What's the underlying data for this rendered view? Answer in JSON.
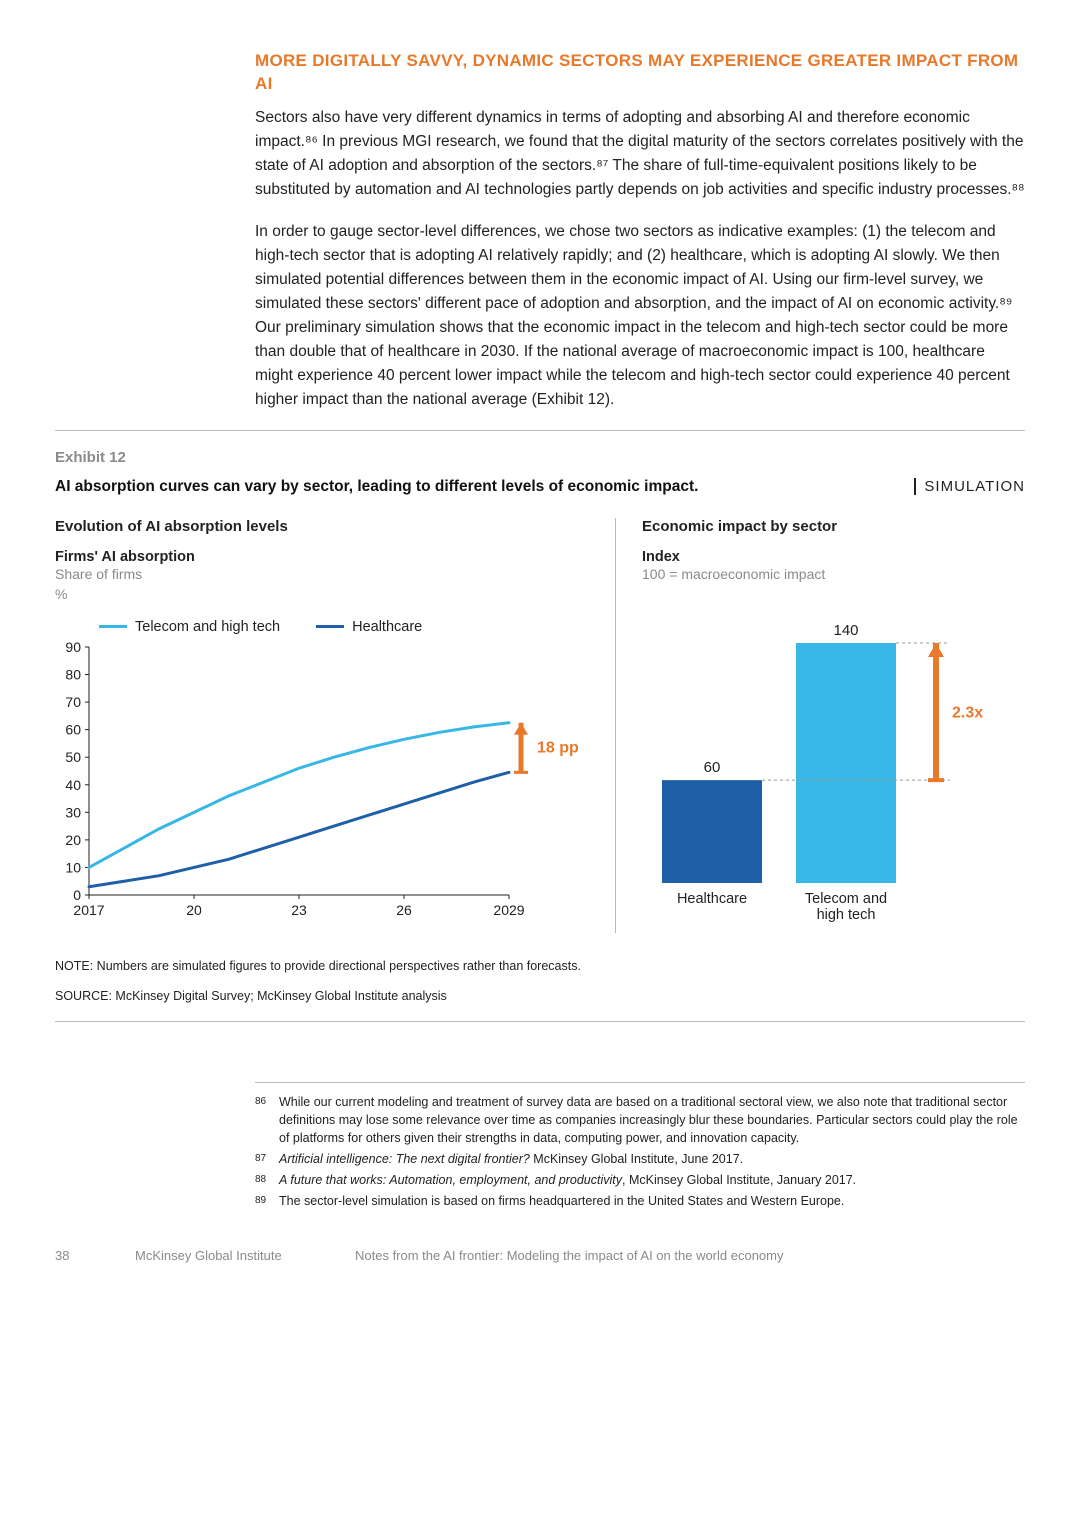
{
  "heading": "MORE DIGITALLY SAVVY, DYNAMIC SECTORS MAY EXPERIENCE GREATER IMPACT FROM AI",
  "para1": "Sectors also have very different dynamics in terms of adopting and absorbing AI and therefore economic impact.⁸⁶ In previous MGI research, we found that the digital maturity of the sectors correlates positively with the state of AI adoption and absorption of the sectors.⁸⁷ The share of full-time-equivalent positions likely to be substituted by automation and AI technologies partly depends on job activities and specific industry processes.⁸⁸",
  "para2": "In order to gauge sector-level differences, we chose two sectors as indicative examples: (1) the telecom and high-tech sector that is adopting AI relatively rapidly; and (2) healthcare, which is adopting AI slowly. We then simulated potential differences between them in the economic impact of AI. Using our firm-level survey, we simulated these sectors' different pace of adoption and absorption, and the impact of AI on economic activity.⁸⁹ Our preliminary simulation shows that the economic impact in the telecom and high-tech sector could be more than double that of healthcare in 2030. If the national average of macroeconomic impact is 100, healthcare might experience 40 percent lower impact while the telecom and high-tech sector could experience 40 percent higher impact than the national average (Exhibit 12).",
  "exhibit": {
    "label": "Exhibit 12",
    "title": "AI absorption curves can vary by sector, leading to different levels of economic impact.",
    "badge": "SIMULATION",
    "left": {
      "section_title": "Evolution of AI absorption levels",
      "subtitle_bold": "Firms' AI absorption",
      "subtitle_grey": "Share of firms\n%",
      "legend": [
        {
          "label": "Telecom and high tech",
          "color": "#37b7e6"
        },
        {
          "label": "Healthcare",
          "color": "#1e5fa8"
        }
      ],
      "y_ticks": [
        0,
        10,
        20,
        30,
        40,
        50,
        60,
        70,
        80,
        90
      ],
      "x_ticks": [
        "2017",
        "20",
        "23",
        "26",
        "2029"
      ],
      "series": [
        {
          "name": "Telecom and high tech",
          "color": "#37b7e6",
          "width": 3,
          "points": [
            [
              2017,
              10
            ],
            [
              2018,
              17
            ],
            [
              2019,
              24
            ],
            [
              2020,
              30
            ],
            [
              2021,
              36
            ],
            [
              2022,
              41
            ],
            [
              2023,
              46
            ],
            [
              2024,
              50
            ],
            [
              2025,
              53.5
            ],
            [
              2026,
              56.5
            ],
            [
              2027,
              59
            ],
            [
              2028,
              61
            ],
            [
              2029,
              62.5
            ]
          ]
        },
        {
          "name": "Healthcare",
          "color": "#1e5fa8",
          "width": 3,
          "points": [
            [
              2017,
              3
            ],
            [
              2018,
              5
            ],
            [
              2019,
              7
            ],
            [
              2020,
              10
            ],
            [
              2021,
              13
            ],
            [
              2022,
              17
            ],
            [
              2023,
              21
            ],
            [
              2024,
              25
            ],
            [
              2025,
              29
            ],
            [
              2026,
              33
            ],
            [
              2027,
              37
            ],
            [
              2028,
              41
            ],
            [
              2029,
              44.5
            ]
          ]
        }
      ],
      "callout": {
        "label": "18 pp",
        "color": "#e8792b"
      },
      "x_domain": [
        2017,
        2029
      ],
      "y_domain": [
        0,
        90
      ]
    },
    "right": {
      "section_title": "Economic impact by sector",
      "subtitle_bold": "Index",
      "subtitle_grey": "100 = macroeconomic impact",
      "bars": [
        {
          "label": "Healthcare",
          "value": 60,
          "color": "#1e5fa8"
        },
        {
          "label": "Telecom and\nhigh tech",
          "value": 140,
          "color": "#37b7e6"
        }
      ],
      "y_max": 140,
      "callout": {
        "label": "2.3x",
        "color": "#e8792b"
      }
    },
    "note": "NOTE: Numbers are simulated figures to provide directional perspectives rather than forecasts.",
    "source": "SOURCE:  McKinsey Digital Survey; McKinsey Global Institute analysis"
  },
  "footnotes": [
    {
      "num": "86",
      "text": "While our current modeling and treatment of survey data are based on a traditional sectoral view, we also note that traditional sector definitions may lose some relevance over time as companies increasingly blur these boundaries. Particular sectors could play the role of platforms for others given their strengths in data, computing power, and innovation capacity."
    },
    {
      "num": "87",
      "text": "<em>Artificial intelligence: The next digital frontier?</em> McKinsey Global Institute, June 2017."
    },
    {
      "num": "88",
      "text": "<em>A future that works: Automation, employment, and productivity</em>, McKinsey Global Institute, January 2017."
    },
    {
      "num": "89",
      "text": "The sector-level simulation is based on firms headquartered in the United States and Western Europe."
    }
  ],
  "footer": {
    "page": "38",
    "institute": "McKinsey Global Institute",
    "doc_title": "Notes from the AI frontier: Modeling the impact of AI on the world economy"
  },
  "colors": {
    "accent_orange": "#e8792b",
    "grey_text": "#8a8a8a",
    "rule": "#b8b8b8",
    "dash": "#9a9a9a"
  }
}
